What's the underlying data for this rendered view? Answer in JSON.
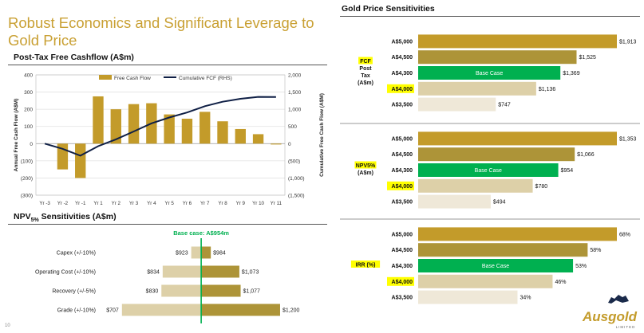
{
  "slide": {
    "title_line1": "Robust Economics and Significant Leverage to",
    "title_line2": "Gold Price",
    "page_number": "10",
    "colors": {
      "title": "#c9a033",
      "gold": "#c39b2a",
      "olive": "#ad9438",
      "green": "#00b050",
      "beige": "#ddd0a8",
      "cream": "#efe8d8",
      "highlight": "#ffff00",
      "navy": "#0f1f45"
    }
  },
  "logo": {
    "wordmark": "Ausgold",
    "tagline": "LIMITED"
  },
  "fcf_chart_section": {
    "title": "Post-Tax Free Cashflow (A$m)"
  },
  "npv_section": {
    "title_prefix": "NPV",
    "title_sub": "5%",
    "title_suffix": " Sensitivities (A$m)"
  },
  "gold_section": {
    "title": "Gold Price Sensitivities"
  },
  "chart_data": [
    {
      "id": "fcf",
      "type": "bar+line",
      "categories": [
        "Yr -3",
        "Yr -2",
        "Yr -1",
        "Yr 1",
        "Yr 2",
        "Yr 3",
        "Yr 4",
        "Yr 5",
        "Yr 6",
        "Yr 7",
        "Yr 8",
        "Yr 9",
        "Yr 10",
        "Yr 11"
      ],
      "series": [
        {
          "name": "Free Cash Flow",
          "type": "bar",
          "axis": "left",
          "values": [
            0,
            -150,
            -200,
            275,
            200,
            230,
            235,
            170,
            145,
            185,
            130,
            85,
            55,
            -5
          ]
        },
        {
          "name": "Cumulative FCF (RHS)",
          "type": "line",
          "axis": "right",
          "values": [
            0,
            -150,
            -350,
            -75,
            125,
            355,
            590,
            760,
            905,
            1090,
            1220,
            1305,
            1360,
            1355
          ]
        }
      ],
      "ylabel": "Annual Free Cash Flow (A$M)",
      "y2label": "Cumulative Free Cash Flow (A$M)",
      "ylim": [
        -300,
        400
      ],
      "y2lim": [
        -1500,
        2000
      ],
      "yticks": [
        400,
        300,
        200,
        100,
        0,
        -100,
        -200,
        -300
      ],
      "ytick_labels": [
        "400",
        "300",
        "200",
        "100",
        "0",
        "(100)",
        "(200)",
        "(300)"
      ],
      "y2ticks": [
        2000,
        1500,
        1000,
        500,
        0,
        -500,
        -1000,
        -1500
      ],
      "y2tick_labels": [
        "2,000",
        "1,500",
        "1,000",
        "500",
        "0",
        "(500)",
        "(1,000)",
        "(1,500)"
      ],
      "gridlines": true,
      "legend_position": "top"
    },
    {
      "id": "npv_tornado",
      "type": "tornado",
      "base_label": "Base case: A$954m",
      "base": 954,
      "xlim": [
        700,
        1210
      ],
      "rows": [
        {
          "label": "Capex (+/-10%)",
          "low": 923,
          "high": 984,
          "low_label": "$923",
          "high_label": "$984"
        },
        {
          "label": "Operating Cost (+/-10%)",
          "low": 834,
          "high": 1073,
          "low_label": "$834",
          "high_label": "$1,073"
        },
        {
          "label": "Recovery (+/-5%)",
          "low": 830,
          "high": 1077,
          "low_label": "$830",
          "high_label": "$1,077"
        },
        {
          "label": "Grade (+/-10%)",
          "low": 707,
          "high": 1200,
          "low_label": "$707",
          "high_label": "$1,200"
        }
      ]
    },
    {
      "id": "gold_fcf",
      "type": "bar",
      "orientation": "horizontal",
      "metric_label_lines": [
        "FCF",
        "Post",
        "Tax",
        "(A$m)"
      ],
      "xmax": 1913,
      "categories": [
        "A$5,000",
        "A$4,500",
        "A$4,300",
        "A$4,000",
        "A$3,500"
      ],
      "values": [
        1913,
        1525,
        1369,
        1136,
        747
      ],
      "value_labels": [
        "$1,913",
        "$1,525",
        "$1,369",
        "$1,136",
        "$747"
      ],
      "base_index": 2,
      "base_text": "Base Case",
      "highlight_index": 3
    },
    {
      "id": "gold_npv",
      "type": "bar",
      "orientation": "horizontal",
      "metric_label_lines": [
        "NPV5%",
        "(A$m)"
      ],
      "xmax": 1353,
      "categories": [
        "A$5,000",
        "A$4,500",
        "A$4,300",
        "A$4,000",
        "A$3,500"
      ],
      "values": [
        1353,
        1066,
        954,
        780,
        494
      ],
      "value_labels": [
        "$1,353",
        "$1,066",
        "$954",
        "$780",
        "$494"
      ],
      "base_index": 2,
      "base_text": "Base Case",
      "highlight_index": 3
    },
    {
      "id": "gold_irr",
      "type": "bar",
      "orientation": "horizontal",
      "metric_label_lines": [
        "IRR (%)"
      ],
      "xmax": 68,
      "categories": [
        "A$5,000",
        "A$4,500",
        "A$4,300",
        "A$4,000",
        "A$3,500"
      ],
      "values": [
        68,
        58,
        53,
        46,
        34
      ],
      "value_labels": [
        "68%",
        "58%",
        "53%",
        "46%",
        "34%"
      ],
      "base_index": 2,
      "base_text": "Base Case",
      "highlight_index": 3
    }
  ]
}
